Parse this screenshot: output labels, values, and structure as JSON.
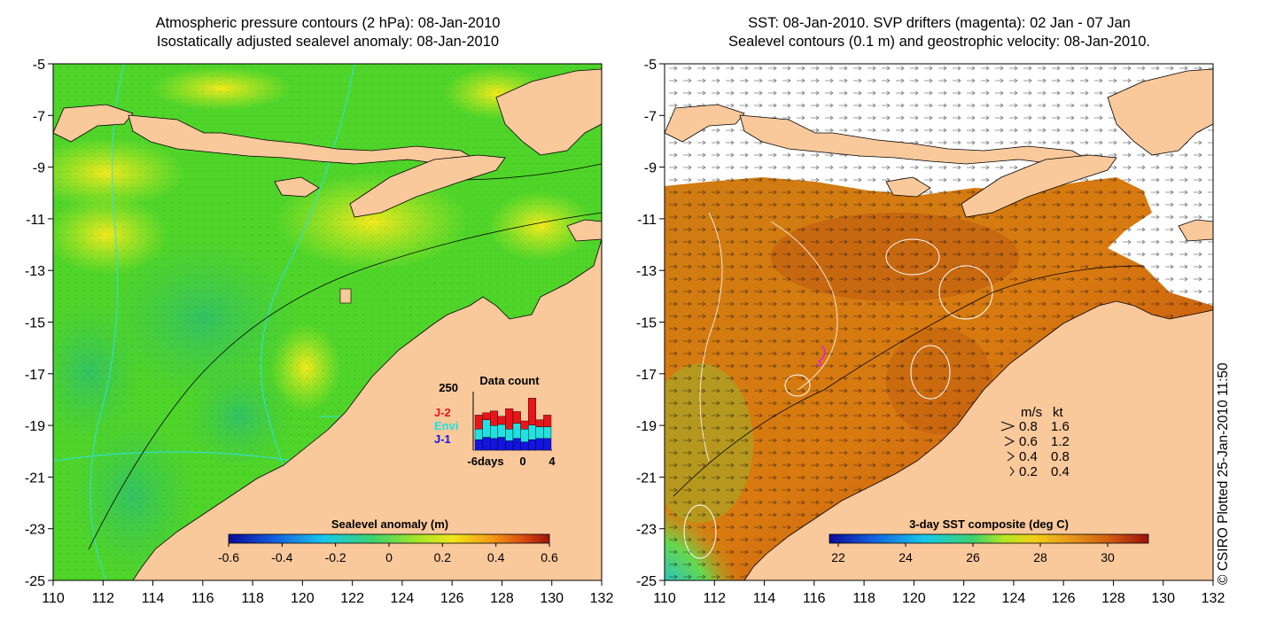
{
  "left_panel": {
    "title_line1": "Atmospheric pressure contours (2 hPa): 08-Jan-2010",
    "title_line2": "Isostatically adjusted sealevel anomaly: 08-Jan-2010",
    "colorbar_label": "Sealevel anomaly (m)",
    "colorbar_ticks": [
      "-0.6",
      "-0.4",
      "-0.2",
      "0",
      "0.2",
      "0.4",
      "0.6"
    ],
    "inset": {
      "title": "Data count",
      "ymax_label": "250",
      "x_labels": [
        "-6days",
        "0",
        "4"
      ],
      "legend": [
        {
          "label": "J-2",
          "color": "#e8141a"
        },
        {
          "label": "Envi",
          "color": "#22e0e0"
        },
        {
          "label": "J-1",
          "color": "#1414e0"
        }
      ],
      "bars": [
        {
          "j1": 0.18,
          "envi": 0.18,
          "j2": 0.24
        },
        {
          "j1": 0.22,
          "envi": 0.3,
          "j2": 0.12
        },
        {
          "j1": 0.2,
          "envi": 0.22,
          "j2": 0.25
        },
        {
          "j1": 0.22,
          "envi": 0.22,
          "j2": 0.14
        },
        {
          "j1": 0.16,
          "envi": 0.2,
          "j2": 0.35
        },
        {
          "j1": 0.2,
          "envi": 0.26,
          "j2": 0.2
        },
        {
          "j1": 0.14,
          "envi": 0.22,
          "j2": 0.14
        },
        {
          "j1": 0.18,
          "envi": 0.25,
          "j2": 0.46
        },
        {
          "j1": 0.2,
          "envi": 0.2,
          "j2": 0.12
        },
        {
          "j1": 0.2,
          "envi": 0.2,
          "j2": 0.2
        }
      ]
    }
  },
  "right_panel": {
    "title_line1": "SST: 08-Jan-2010. SVP drifters (magenta): 02 Jan - 07 Jan",
    "title_line2": "Sealevel contours (0.1 m) and geostrophic velocity: 08-Jan-2010.",
    "colorbar_label": "3-day SST composite (deg C)",
    "colorbar_ticks": [
      "22",
      "24",
      "26",
      "28",
      "30"
    ],
    "velocity_legend": {
      "header_ms": "m/s",
      "header_kt": "kt",
      "rows": [
        {
          "ms": "0.8",
          "kt": "1.6"
        },
        {
          "ms": "0.6",
          "kt": "1.2"
        },
        {
          "ms": "0.4",
          "kt": "0.8"
        },
        {
          "ms": "0.2",
          "kt": "0.4"
        }
      ]
    }
  },
  "axes": {
    "y_labels": [
      "-5",
      "-7",
      "-9",
      "-11",
      "-13",
      "-15",
      "-17",
      "-19",
      "-21",
      "-23",
      "-25"
    ],
    "x_labels": [
      "110",
      "112",
      "114",
      "116",
      "118",
      "120",
      "122",
      "124",
      "126",
      "128",
      "130",
      "132"
    ]
  },
  "credit": "© CSIRO Plotted 25-Jan-2010 11:50",
  "colors": {
    "land": "#f9c89b",
    "ssh_green": "#4fd42a",
    "ssh_yellow": "#d8f01c",
    "sst_orange": "#d2780e",
    "sst_red": "#b02410"
  }
}
